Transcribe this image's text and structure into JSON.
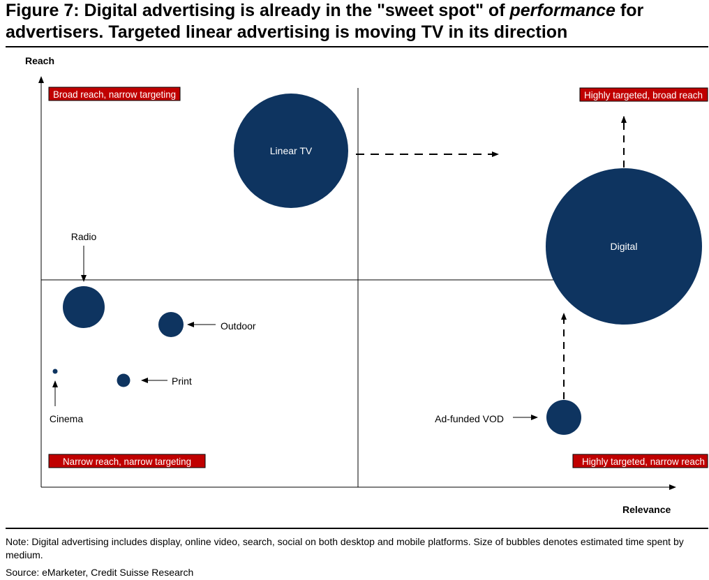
{
  "figure": {
    "title_prefix": "Figure 7: Digital advertising is already in the \"sweet spot\" of ",
    "title_emphasis": "performance",
    "title_suffix": " for advertisers. Targeted linear advertising is moving TV in its direction",
    "note": "Note: Digital advertising includes display, online video, search, social on both desktop and mobile platforms. Size of bubbles denotes estimated time spent by medium.",
    "source": "Source: eMarketer, Credit Suisse Research"
  },
  "colors": {
    "bubble": "#0e3460",
    "quadrant_label_bg": "#c00000",
    "quadrant_label_border": "#000000"
  },
  "chart_data": {
    "type": "scatter",
    "subtype": "bubble",
    "xlabel": "Relevance",
    "ylabel": "Reach",
    "grid": false,
    "quadrant_labels": {
      "top_left": "Broad reach, narrow targeting",
      "top_right": "Highly targeted, broad reach",
      "bottom_left": "Narrow reach, narrow targeting",
      "bottom_right": "Highly targeted, narrow reach"
    },
    "bubbles": [
      {
        "label": "Linear TV",
        "label_position": "inside",
        "x": 0.4,
        "y": 0.81,
        "size": 0.37
      },
      {
        "label": "Digital",
        "label_position": "inside",
        "x": 0.92,
        "y": 0.53,
        "size": 0.5
      },
      {
        "label": "Radio",
        "label_position": "above-arrow",
        "x": 0.07,
        "y": 0.45,
        "size": 0.13
      },
      {
        "label": "Outdoor",
        "label_position": "right-arrow",
        "x": 0.2,
        "y": 0.37,
        "size": 0.08
      },
      {
        "label": "Print",
        "label_position": "right-arrow",
        "x": 0.13,
        "y": 0.27,
        "size": 0.04
      },
      {
        "label": "Cinema",
        "label_position": "below-arrow",
        "x": 0.02,
        "y": 0.27,
        "size": 0.015
      },
      {
        "label": "Ad-funded VOD",
        "label_position": "left-arrow",
        "x": 0.83,
        "y": 0.16,
        "size": 0.11
      }
    ],
    "movement_arrows": [
      {
        "from": "Linear TV",
        "direction": "right",
        "style": "dashed"
      },
      {
        "from": "Digital",
        "direction": "up",
        "style": "dashed"
      },
      {
        "from": "Ad-funded VOD",
        "direction": "up",
        "style": "dashed"
      }
    ]
  }
}
